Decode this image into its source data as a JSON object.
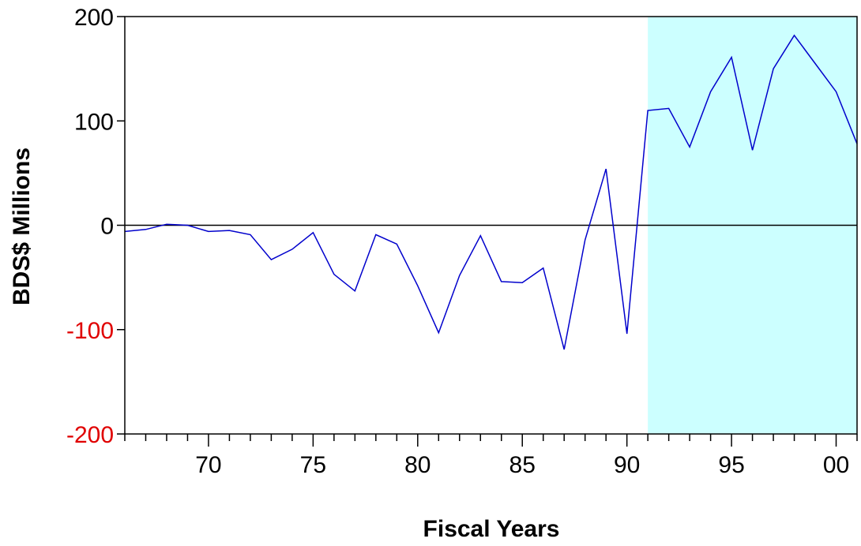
{
  "chart_data": {
    "type": "line",
    "xlabel": "Fiscal Years",
    "ylabel": "BDS$ Millions",
    "xlim": [
      1966,
      2001
    ],
    "ylim": [
      -200,
      200
    ],
    "x_ticks": [
      1970,
      1975,
      1980,
      1985,
      1990,
      1995,
      2000
    ],
    "x_tick_labels": [
      "70",
      "75",
      "80",
      "85",
      "90",
      "95",
      "00"
    ],
    "y_ticks": [
      {
        "value": 200,
        "label": "200",
        "color": "#000000"
      },
      {
        "value": 100,
        "label": "100",
        "color": "#000000"
      },
      {
        "value": 0,
        "label": "0",
        "color": "#000000"
      },
      {
        "value": -100,
        "label": "-100",
        "color": "#e00000"
      },
      {
        "value": -200,
        "label": "-200",
        "color": "#e00000"
      }
    ],
    "shaded_region": {
      "x_start": 1991,
      "x_end": 2001,
      "color": "#ccffff"
    },
    "zero_line": true,
    "grid": false,
    "line_color": "#0000cc",
    "x": [
      1966,
      1967,
      1968,
      1969,
      1970,
      1971,
      1972,
      1973,
      1974,
      1975,
      1976,
      1977,
      1978,
      1979,
      1980,
      1981,
      1982,
      1983,
      1984,
      1985,
      1986,
      1987,
      1988,
      1989,
      1990,
      1991,
      1992,
      1993,
      1994,
      1995,
      1996,
      1997,
      1998,
      1999,
      2000,
      2001
    ],
    "values": [
      -6,
      -4,
      1,
      0,
      -6,
      -5,
      -9,
      -33,
      -23,
      -7,
      -47,
      -63,
      -9,
      -18,
      -58,
      -103,
      -48,
      -10,
      -54,
      -55,
      -41,
      -119,
      -14,
      54,
      -104,
      110,
      112,
      75,
      128,
      161,
      72,
      150,
      182,
      155,
      128,
      78
    ]
  }
}
